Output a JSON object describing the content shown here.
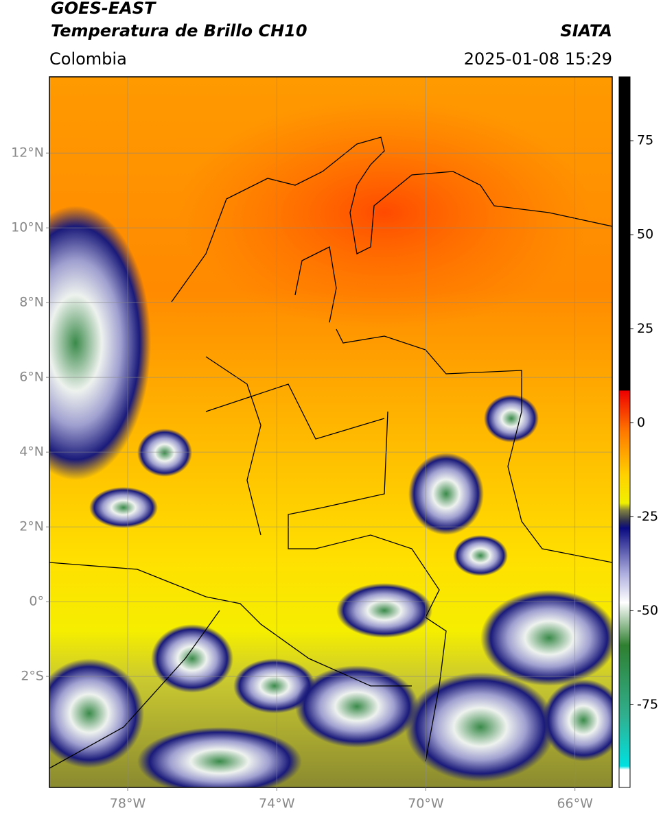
{
  "map": {
    "title": "GOES-EAST",
    "subtitle": "Temperatura de Brillo CH10",
    "source": "SIATA",
    "region": "Colombia",
    "timestamp": "2025-01-08 15:29",
    "xlim": [
      -80.1,
      -65
    ],
    "ylim": [
      -4.97,
      14.04
    ],
    "xticks": [
      {
        "value": -78,
        "label": "78°W"
      },
      {
        "value": -74,
        "label": "74°W"
      },
      {
        "value": -70,
        "label": "70°W"
      },
      {
        "value": -66,
        "label": "66°W"
      }
    ],
    "yticks": [
      {
        "value": 12,
        "label": "12°N"
      },
      {
        "value": 10,
        "label": "10°N"
      },
      {
        "value": 8,
        "label": "8°N"
      },
      {
        "value": 6,
        "label": "6°N"
      },
      {
        "value": 4,
        "label": "4°N"
      },
      {
        "value": 2,
        "label": "2°N"
      },
      {
        "value": 0,
        "label": "0°"
      },
      {
        "value": -2,
        "label": "2°S"
      }
    ],
    "grid": true,
    "colorbar": {
      "lim": [
        -97,
        92
      ],
      "ticks": [
        75,
        50,
        25,
        0,
        -25,
        -50,
        -75
      ]
    }
  }
}
